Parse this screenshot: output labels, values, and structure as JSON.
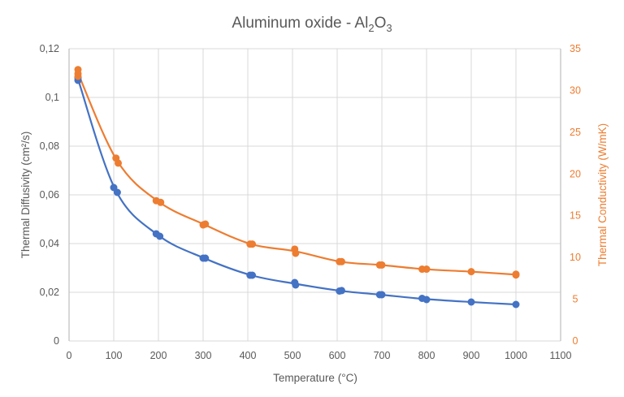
{
  "chart_data": {
    "type": "scatter",
    "title": {
      "main": "Aluminum oxide - Al",
      "sub1": "2",
      "mid": "O",
      "sub2": "3"
    },
    "xlabel": "Temperature (°C)",
    "ylabel": "Thermal Diffusivity (cm²/s)",
    "y2label": "Thermal Conductivity (W/mK)",
    "xlim": [
      0,
      1100
    ],
    "ylim": [
      0,
      0.12
    ],
    "y2lim": [
      0,
      35
    ],
    "xticks": [
      "0",
      "100",
      "200",
      "300",
      "400",
      "500",
      "600",
      "700",
      "800",
      "900",
      "1000",
      "1100"
    ],
    "yticks": [
      "0",
      "0,02",
      "0,04",
      "0,06",
      "0,08",
      "0,1",
      "0,12"
    ],
    "y2ticks": [
      "0",
      "5",
      "10",
      "15",
      "20",
      "25",
      "30",
      "35"
    ],
    "grid": true,
    "legend": "none",
    "series": [
      {
        "axis": "left",
        "color": "#4472C4",
        "smoothed_line": true,
        "x": [
          20,
          20,
          100,
          108,
          195,
          203,
          300,
          305,
          405,
          410,
          505,
          507,
          605,
          610,
          695,
          700,
          790,
          800,
          900,
          1000
        ],
        "y": [
          0.107,
          0.108,
          0.063,
          0.061,
          0.044,
          0.043,
          0.034,
          0.034,
          0.027,
          0.027,
          0.024,
          0.023,
          0.0205,
          0.0207,
          0.019,
          0.019,
          0.0175,
          0.017,
          0.016,
          0.015
        ]
      },
      {
        "axis": "right",
        "color": "#ED7D31",
        "smoothed_line": true,
        "x": [
          20,
          20,
          20,
          105,
          110,
          195,
          205,
          300,
          305,
          405,
          410,
          505,
          507,
          605,
          610,
          695,
          700,
          790,
          800,
          900,
          1000,
          1000
        ],
        "y": [
          32.5,
          32.0,
          31.7,
          21.9,
          21.3,
          16.8,
          16.6,
          13.9,
          14.0,
          11.6,
          11.6,
          11.0,
          10.5,
          9.5,
          9.5,
          9.1,
          9.1,
          8.6,
          8.6,
          8.3,
          8.0,
          7.9
        ]
      }
    ]
  }
}
